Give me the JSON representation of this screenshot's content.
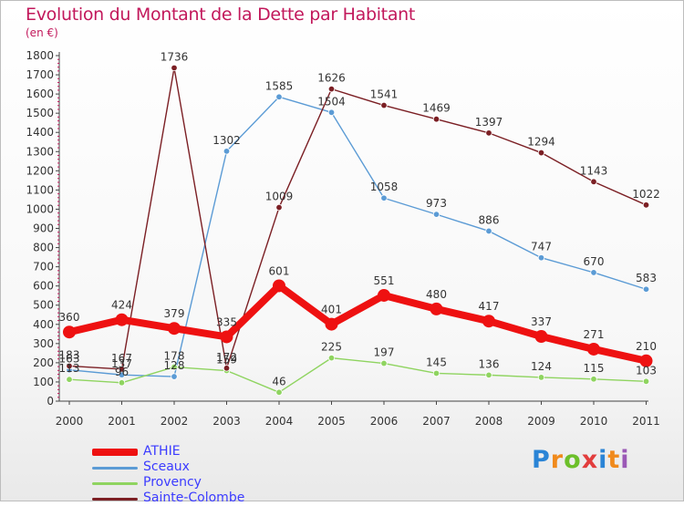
{
  "title": "Evolution du Montant de la Dette par Habitant",
  "unit_label": "(en €)",
  "logo_text": "Proxiti",
  "chart_data": {
    "type": "line",
    "title": "Evolution du Montant de la Dette par Habitant",
    "subtitle": "(en €)",
    "xlabel": "",
    "ylabel": "",
    "categories": [
      "2000",
      "2001",
      "2002",
      "2003",
      "2004",
      "2005",
      "2006",
      "2007",
      "2008",
      "2009",
      "2010",
      "2011"
    ],
    "ylim": [
      0,
      1800
    ],
    "yticks": [
      0,
      100,
      200,
      300,
      400,
      500,
      600,
      700,
      800,
      900,
      1000,
      1100,
      1200,
      1300,
      1400,
      1500,
      1600,
      1700,
      1800
    ],
    "grid": false,
    "legend_position": "bottom-left",
    "series": [
      {
        "name": "ATHIE",
        "color": "#ee1111",
        "values": [
          360,
          424,
          379,
          335,
          601,
          401,
          551,
          480,
          417,
          337,
          271,
          210
        ],
        "labels": [
          "360",
          "424",
          "379",
          "335",
          "601",
          "401",
          "551",
          "480",
          "417",
          "337",
          "271",
          "210"
        ]
      },
      {
        "name": "Sceaux",
        "color": "#5b9bd5",
        "values": [
          163,
          137,
          128,
          1302,
          1585,
          1504,
          1058,
          973,
          886,
          747,
          670,
          583
        ],
        "labels": [
          "163",
          "137",
          "128",
          "1302",
          "1585",
          "1504",
          "1058",
          "973",
          "886",
          "747",
          "670",
          "583"
        ]
      },
      {
        "name": "Provency",
        "color": "#8fd460",
        "values": [
          113,
          96,
          178,
          159,
          46,
          225,
          197,
          145,
          136,
          124,
          115,
          103
        ],
        "labels": [
          "113",
          "96",
          "178",
          "159",
          "46",
          "225",
          "197",
          "145",
          "136",
          "124",
          "115",
          "103"
        ]
      },
      {
        "name": "Sainte-Colombe",
        "color": "#7b1f24",
        "values": [
          183,
          167,
          1736,
          172,
          1009,
          1626,
          1541,
          1469,
          1397,
          1294,
          1143,
          1022
        ],
        "labels": [
          "183",
          "167",
          "1736",
          "172",
          "1009",
          "1626",
          "1541",
          "1469",
          "1397",
          "1294",
          "1143",
          "1022"
        ]
      }
    ]
  }
}
